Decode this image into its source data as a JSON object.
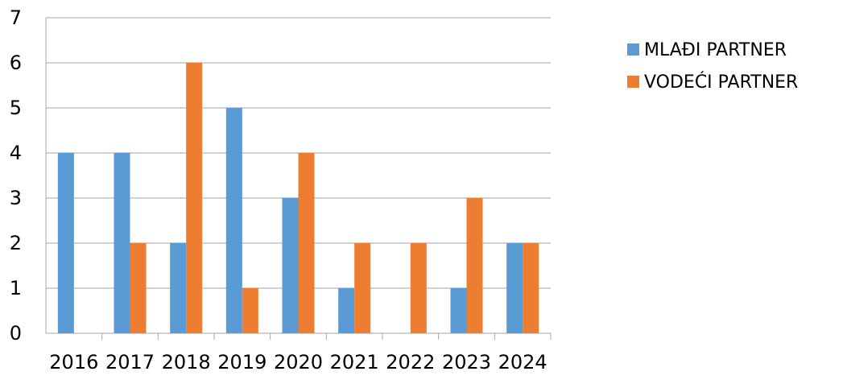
{
  "chart_data": {
    "type": "bar",
    "title": "",
    "xlabel": "",
    "ylabel": "",
    "categories": [
      "2016",
      "2017",
      "2018",
      "2019",
      "2020",
      "2021",
      "2022",
      "2023",
      "2024"
    ],
    "series": [
      {
        "name": "MLAĐI PARTNER",
        "color": "#5b9bd5",
        "values": [
          4,
          4,
          2,
          5,
          3,
          1,
          0,
          1,
          2
        ]
      },
      {
        "name": "VODEĆI PARTNER",
        "color": "#ed7d31",
        "values": [
          0,
          2,
          6,
          1,
          4,
          2,
          2,
          3,
          2
        ]
      }
    ],
    "ylim": [
      0,
      7
    ],
    "yticks": [
      "0",
      "1",
      "2",
      "3",
      "4",
      "5",
      "6",
      "7"
    ],
    "grid": true,
    "legend_position": "right"
  }
}
